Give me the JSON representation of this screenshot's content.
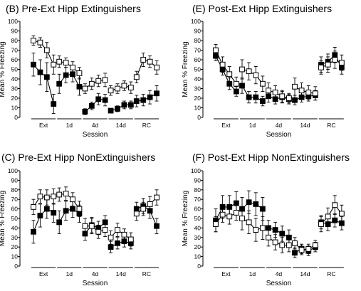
{
  "chart_data": [
    {
      "type": "line",
      "title": "(B)  Pre-Ext Hipp Extinguishers",
      "ylabel": "Mean % Freezing",
      "xlabel": "Session",
      "ylim": [
        0,
        100
      ],
      "yticks": [
        0,
        10,
        20,
        30,
        40,
        50,
        60,
        70,
        80,
        90,
        100
      ],
      "groups": [
        "Ext",
        "1d",
        "4d",
        "14d",
        "RC"
      ],
      "series": [
        {
          "marker": "open-square",
          "groups": [
            {
              "values": [
                80,
                78,
                70,
                55
              ],
              "err": [
                5,
                5,
                8,
                10
              ]
            },
            {
              "values": [
                58,
                57,
                52,
                46
              ],
              "err": [
                6,
                5,
                6,
                6
              ]
            },
            {
              "values": [
                30,
                35,
                38,
                39
              ],
              "err": [
                5,
                6,
                6,
                7
              ]
            },
            {
              "values": [
                28,
                30,
                33,
                31
              ],
              "err": [
                5,
                5,
                5,
                6
              ]
            },
            {
              "values": [
                42,
                60,
                58,
                52
              ],
              "err": [
                6,
                7,
                6,
                7
              ]
            }
          ]
        },
        {
          "marker": "filled-square",
          "groups": [
            {
              "values": [
                55,
                47,
                42,
                14
              ],
              "err": [
                12,
                13,
                15,
                10
              ]
            },
            {
              "values": [
                35,
                44,
                45,
                32
              ],
              "err": [
                10,
                8,
                8,
                9
              ]
            },
            {
              "values": [
                6,
                12,
                19,
                18
              ],
              "err": [
                3,
                4,
                6,
                6
              ]
            },
            {
              "values": [
                7,
                9,
                13,
                13
              ],
              "err": [
                2,
                3,
                4,
                4
              ]
            },
            {
              "values": [
                17,
                18,
                21,
                25
              ],
              "err": [
                6,
                6,
                7,
                8
              ]
            }
          ]
        }
      ]
    },
    {
      "type": "line",
      "title": "(E)  Post-Ext Hipp Extinguishers",
      "ylabel": "Mean % Freezing",
      "xlabel": "Session",
      "ylim": [
        0,
        100
      ],
      "yticks": [
        0,
        10,
        20,
        30,
        40,
        50,
        60,
        70,
        80,
        90,
        100
      ],
      "groups": [
        "Ext",
        "1d",
        "4d",
        "14d",
        "RC"
      ],
      "series": [
        {
          "marker": "open-square",
          "groups": [
            {
              "values": [
                70,
                55,
                45,
                35
              ],
              "err": [
                6,
                8,
                8,
                7
              ]
            },
            {
              "values": [
                50,
                48,
                44,
                35
              ],
              "err": [
                10,
                9,
                9,
                8
              ]
            },
            {
              "values": [
                28,
                26,
                22,
                20
              ],
              "err": [
                8,
                7,
                6,
                5
              ]
            },
            {
              "values": [
                32,
                28,
                26,
                25
              ],
              "err": [
                9,
                8,
                7,
                7
              ]
            },
            {
              "values": [
                52,
                55,
                60,
                57
              ],
              "err": [
                7,
                8,
                9,
                8
              ]
            }
          ]
        },
        {
          "marker": "filled-square",
          "groups": [
            {
              "values": [
                64,
                50,
                35,
                27
              ],
              "err": [
                5,
                6,
                6,
                5
              ]
            },
            {
              "values": [
                33,
                21,
                21,
                17
              ],
              "err": [
                8,
                6,
                6,
                5
              ]
            },
            {
              "values": [
                22,
                19,
                21,
                19
              ],
              "err": [
                6,
                5,
                6,
                5
              ]
            },
            {
              "values": [
                18,
                21,
                22,
                23
              ],
              "err": [
                5,
                5,
                5,
                5
              ]
            },
            {
              "values": [
                55,
                58,
                65,
                52
              ],
              "err": [
                8,
                8,
                8,
                7
              ]
            }
          ]
        }
      ]
    },
    {
      "type": "line",
      "title": "(C)  Pre-Ext Hipp NonExtinguishers",
      "ylabel": "Mean % Freezing",
      "xlabel": "Session",
      "ylim": [
        0,
        100
      ],
      "yticks": [
        0,
        10,
        20,
        30,
        40,
        50,
        60,
        70,
        80,
        90,
        100
      ],
      "groups": [
        "Ext",
        "1d",
        "4d",
        "14d",
        "RC"
      ],
      "series": [
        {
          "marker": "open-square",
          "groups": [
            {
              "values": [
                62,
                73,
                72,
                73
              ],
              "err": [
                8,
                7,
                8,
                8
              ]
            },
            {
              "values": [
                75,
                76,
                70,
                60
              ],
              "err": [
                7,
                7,
                7,
                8
              ]
            },
            {
              "values": [
                42,
                42,
                36,
                38
              ],
              "err": [
                8,
                8,
                7,
                7
              ]
            },
            {
              "values": [
                30,
                38,
                33,
                28
              ],
              "err": [
                7,
                7,
                6,
                7
              ]
            },
            {
              "values": [
                55,
                60,
                65,
                72
              ],
              "err": [
                7,
                7,
                8,
                8
              ]
            }
          ]
        },
        {
          "marker": "filled-square",
          "groups": [
            {
              "values": [
                36,
                53,
                60,
                56
              ],
              "err": [
                12,
                12,
                10,
                10
              ]
            },
            {
              "values": [
                46,
                58,
                60,
                55
              ],
              "err": [
                12,
                10,
                9,
                9
              ]
            },
            {
              "values": [
                34,
                43,
                40,
                46
              ],
              "err": [
                7,
                8,
                7,
                7
              ]
            },
            {
              "values": [
                20,
                24,
                26,
                24
              ],
              "err": [
                6,
                6,
                6,
                6
              ]
            },
            {
              "values": [
                60,
                63,
                58,
                42
              ],
              "err": [
                7,
                8,
                8,
                8
              ]
            }
          ]
        }
      ]
    },
    {
      "type": "line",
      "title": "(F)  Post-Ext Hipp NonExtinguishers",
      "ylabel": "Mean % Freezing",
      "xlabel": "Session",
      "ylim": [
        0,
        100
      ],
      "yticks": [
        0,
        10,
        20,
        30,
        40,
        50,
        60,
        70,
        80,
        90,
        100
      ],
      "groups": [
        "Ext",
        "1d",
        "4d",
        "14d",
        "RC"
      ],
      "series": [
        {
          "marker": "open-square",
          "groups": [
            {
              "values": [
                44,
                54,
                52,
                56
              ],
              "err": [
                8,
                8,
                8,
                8
              ]
            },
            {
              "values": [
                50,
                46,
                38,
                40
              ],
              "err": [
                12,
                12,
                12,
                12
              ]
            },
            {
              "values": [
                30,
                25,
                22,
                22
              ],
              "err": [
                9,
                8,
                8,
                7
              ]
            },
            {
              "values": [
                24,
                17,
                18,
                22
              ],
              "err": [
                6,
                5,
                5,
                5
              ]
            },
            {
              "values": [
                44,
                52,
                64,
                55
              ],
              "err": [
                8,
                9,
                10,
                9
              ]
            }
          ]
        },
        {
          "marker": "filled-square",
          "groups": [
            {
              "values": [
                48,
                62,
                62,
                66
              ],
              "err": [
                12,
                12,
                12,
                12
              ]
            },
            {
              "values": [
                60,
                67,
                65,
                60
              ],
              "err": [
                12,
                12,
                12,
                12
              ]
            },
            {
              "values": [
                40,
                38,
                34,
                30
              ],
              "err": [
                8,
                8,
                8,
                8
              ]
            },
            {
              "values": [
                14,
                18,
                16,
                20
              ],
              "err": [
                5,
                5,
                5,
                5
              ]
            },
            {
              "values": [
                46,
                44,
                48,
                45
              ],
              "err": [
                7,
                7,
                7,
                7
              ]
            }
          ]
        }
      ]
    }
  ]
}
